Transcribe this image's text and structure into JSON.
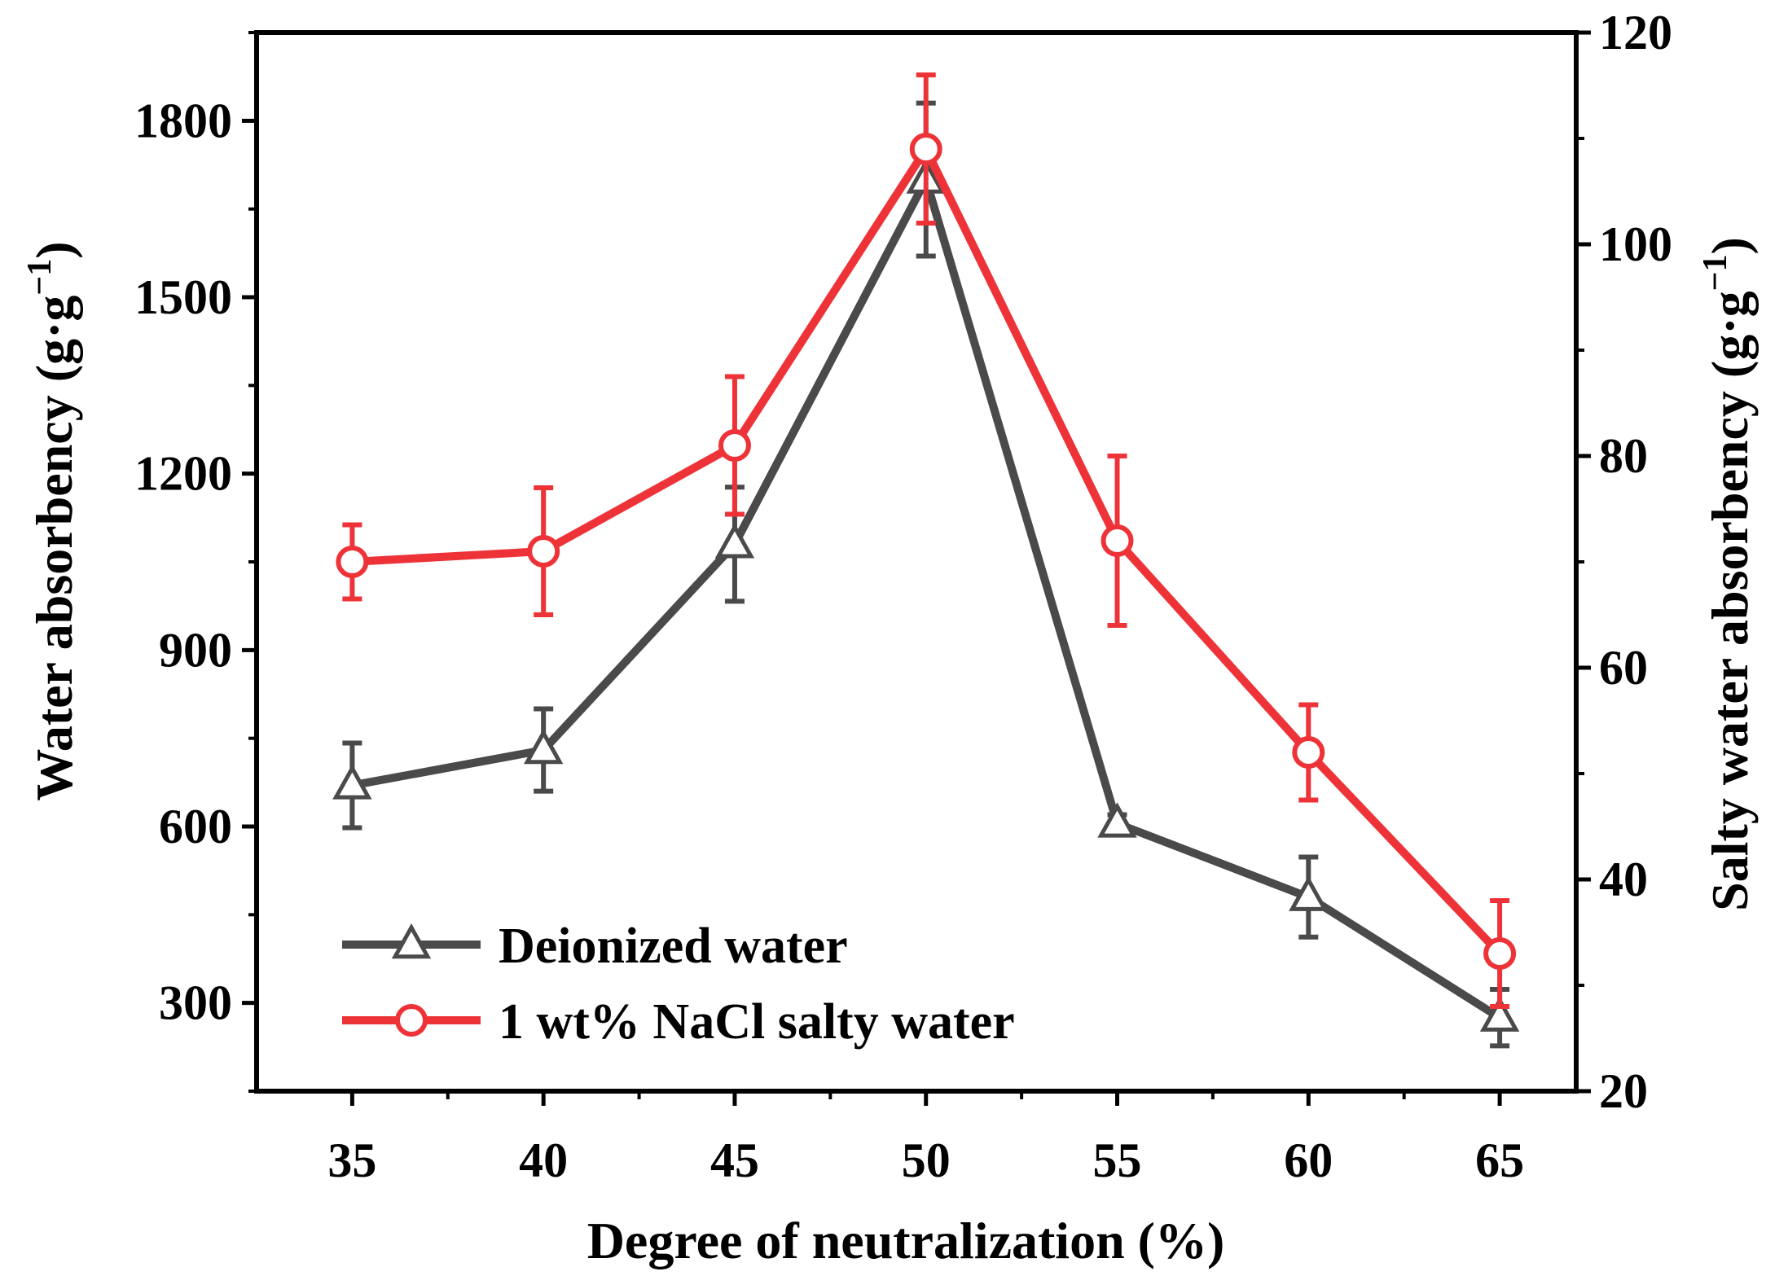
{
  "chart_data": {
    "type": "line",
    "xlabel": "Degree of neutralization (%)",
    "ylabel_left": {
      "main": "Water absorbency (g·g",
      "sup": "−1",
      "end": ")"
    },
    "ylabel_right": {
      "main": "Salty water absorbency (g·g",
      "sup": "−1",
      "end": ")"
    },
    "x": [
      35,
      40,
      45,
      50,
      55,
      60,
      65
    ],
    "x_ticks": [
      "35",
      "40",
      "45",
      "50",
      "55",
      "60",
      "65"
    ],
    "xlim": [
      32.5,
      67
    ],
    "y_left_lim": [
      150,
      1950
    ],
    "y_left_ticks": [
      "300",
      "600",
      "900",
      "1200",
      "1500",
      "1800"
    ],
    "y_right_lim": [
      20,
      120
    ],
    "y_right_ticks": [
      "20",
      "40",
      "60",
      "80",
      "100",
      "120"
    ],
    "series": [
      {
        "name": "Deionized water",
        "axis": "left",
        "color": "#4a4a4a",
        "marker": "triangle",
        "values": [
          670,
          730,
          1080,
          1700,
          605,
          480,
          275
        ],
        "errors": [
          72,
          70,
          97,
          130,
          15,
          68,
          48
        ]
      },
      {
        "name": "1 wt% NaCl salty water",
        "axis": "right",
        "color": "#ee3338",
        "marker": "circle",
        "values": [
          70,
          71,
          81,
          109,
          72,
          52,
          33
        ],
        "errors": [
          3.5,
          6,
          6.5,
          7,
          8,
          4.5,
          5
        ]
      }
    ],
    "legend": [
      "Deionized water",
      "1 wt% NaCl salty water"
    ],
    "legend_position": "bottom-left"
  }
}
